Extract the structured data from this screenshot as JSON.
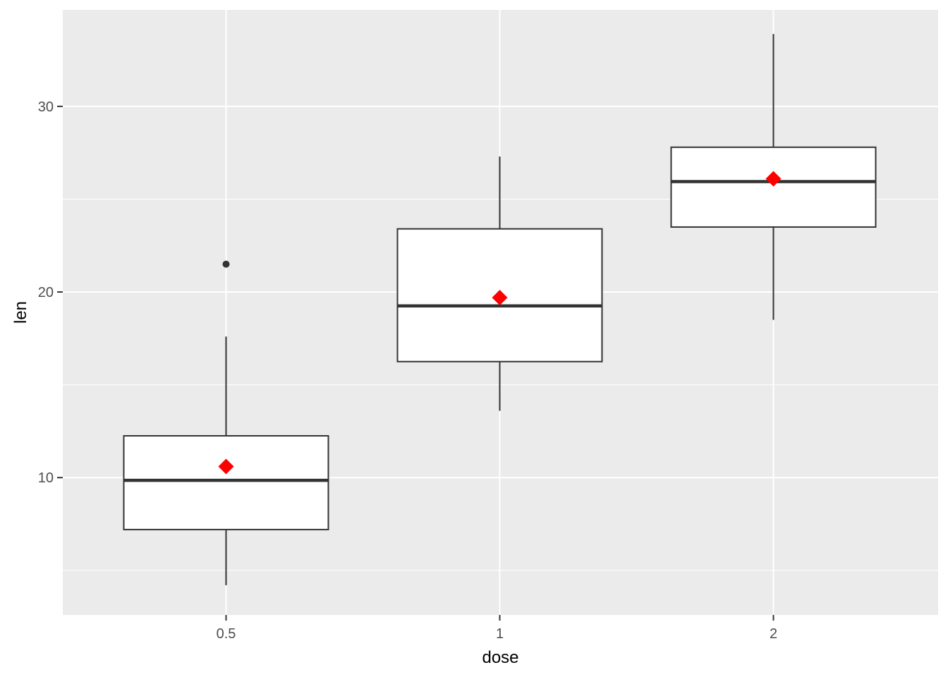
{
  "chart_data": {
    "type": "boxplot",
    "xlabel": "dose",
    "ylabel": "len",
    "categories": [
      "0.5",
      "1",
      "2"
    ],
    "ylim": [
      2.6,
      35.2
    ],
    "y_ticks": [
      10,
      20,
      30
    ],
    "y_minor_ticks": [
      5,
      15,
      25
    ],
    "grid": true,
    "legend": "none",
    "colors": {
      "panel": "#ebebeb",
      "grid": "#ffffff",
      "box_fill": "#ffffff",
      "box_line": "#333333",
      "mean_marker": "#ff0000",
      "outlier": "#333333",
      "tick_text": "#4d4d4d"
    },
    "boxes": [
      {
        "category": "0.5",
        "whisker_low": 4.2,
        "q1": 7.2,
        "median": 9.85,
        "q3": 12.25,
        "whisker_high": 17.6,
        "mean": 10.6,
        "outliers": [
          21.5
        ]
      },
      {
        "category": "1",
        "whisker_low": 13.6,
        "q1": 16.25,
        "median": 19.25,
        "q3": 23.4,
        "whisker_high": 27.3,
        "mean": 19.7,
        "outliers": []
      },
      {
        "category": "2",
        "whisker_low": 18.5,
        "q1": 23.5,
        "median": 25.95,
        "q3": 27.8,
        "whisker_high": 33.9,
        "mean": 26.1,
        "outliers": []
      }
    ]
  }
}
